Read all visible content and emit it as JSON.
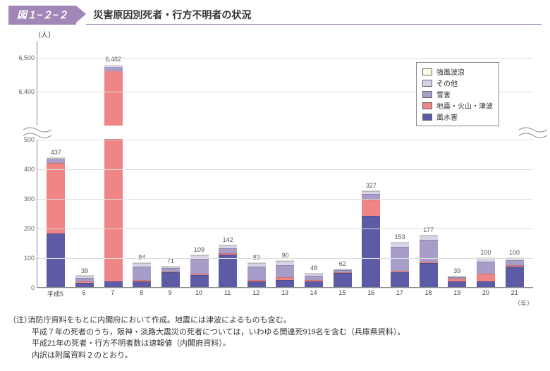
{
  "figure_number": "図１−２−２",
  "figure_title": "災害原因別死者・行方不明者の状況",
  "y_axis_label": "（人）",
  "x_axis_unit": "（年）",
  "legend": [
    {
      "label": "強風波浪",
      "color": "#fffde8"
    },
    {
      "label": "その他",
      "color": "#d8d4e8"
    },
    {
      "label": "雪害",
      "color": "#a89cc8"
    },
    {
      "label": "地震・火山・津波",
      "color": "#ef8585"
    },
    {
      "label": "風水害",
      "color": "#5e5ba6"
    }
  ],
  "colors": {
    "grid": "#dddddd",
    "axis": "#888888",
    "text": "#555555"
  },
  "upper": {
    "min": 6300,
    "max": 6550,
    "ticks": [
      6400,
      6500
    ]
  },
  "lower": {
    "min": 0,
    "max": 500,
    "ticks": [
      0,
      100,
      200,
      300,
      400,
      500
    ]
  },
  "categories": [
    "平成5",
    "6",
    "7",
    "8",
    "9",
    "10",
    "11",
    "12",
    "13",
    "14",
    "15",
    "16",
    "17",
    "18",
    "19",
    "20",
    "21"
  ],
  "totals": [
    437,
    39,
    6482,
    84,
    71,
    109,
    142,
    83,
    90,
    48,
    62,
    327,
    153,
    177,
    39,
    100,
    100
  ],
  "stacks": [
    {
      "wind": 180,
      "eq": 240,
      "snow": 10,
      "other": 5,
      "storm": 2
    },
    {
      "wind": 15,
      "eq": 5,
      "snow": 12,
      "other": 5,
      "storm": 2
    },
    {
      "wind": 20,
      "eq": 6440,
      "snow": 12,
      "other": 8,
      "storm": 2
    },
    {
      "wind": 20,
      "eq": 5,
      "snow": 45,
      "other": 12,
      "storm": 2
    },
    {
      "wind": 50,
      "eq": 3,
      "snow": 12,
      "other": 4,
      "storm": 2
    },
    {
      "wind": 40,
      "eq": 5,
      "snow": 50,
      "other": 12,
      "storm": 2
    },
    {
      "wind": 110,
      "eq": 5,
      "snow": 15,
      "other": 10,
      "storm": 2
    },
    {
      "wind": 20,
      "eq": 5,
      "snow": 45,
      "other": 11,
      "storm": 2
    },
    {
      "wind": 25,
      "eq": 8,
      "snow": 40,
      "other": 15,
      "storm": 2
    },
    {
      "wind": 20,
      "eq": 3,
      "snow": 15,
      "other": 8,
      "storm": 2
    },
    {
      "wind": 48,
      "eq": 3,
      "snow": 6,
      "other": 3,
      "storm": 2
    },
    {
      "wind": 240,
      "eq": 55,
      "snow": 20,
      "other": 10,
      "storm": 2
    },
    {
      "wind": 50,
      "eq": 5,
      "snow": 80,
      "other": 16,
      "storm": 2
    },
    {
      "wind": 80,
      "eq": 5,
      "snow": 75,
      "other": 15,
      "storm": 2
    },
    {
      "wind": 18,
      "eq": 10,
      "snow": 5,
      "other": 4,
      "storm": 2
    },
    {
      "wind": 20,
      "eq": 25,
      "snow": 40,
      "other": 13,
      "storm": 2
    },
    {
      "wind": 70,
      "eq": 5,
      "snow": 15,
      "other": 8,
      "storm": 2
    }
  ],
  "notes_label": "（注）",
  "notes": [
    "消防庁資料をもとに内閣府において作成。地震には津波によるものも含む。",
    "平成７年の死者のうち，阪神・淡路大震災の死者については，いわゆる関連死919名を含む（兵庫県資料）。",
    "平成21年の死者・行方不明者数は速報値（内閣府資料）。",
    "内訳は附属資料２のとおり。"
  ]
}
